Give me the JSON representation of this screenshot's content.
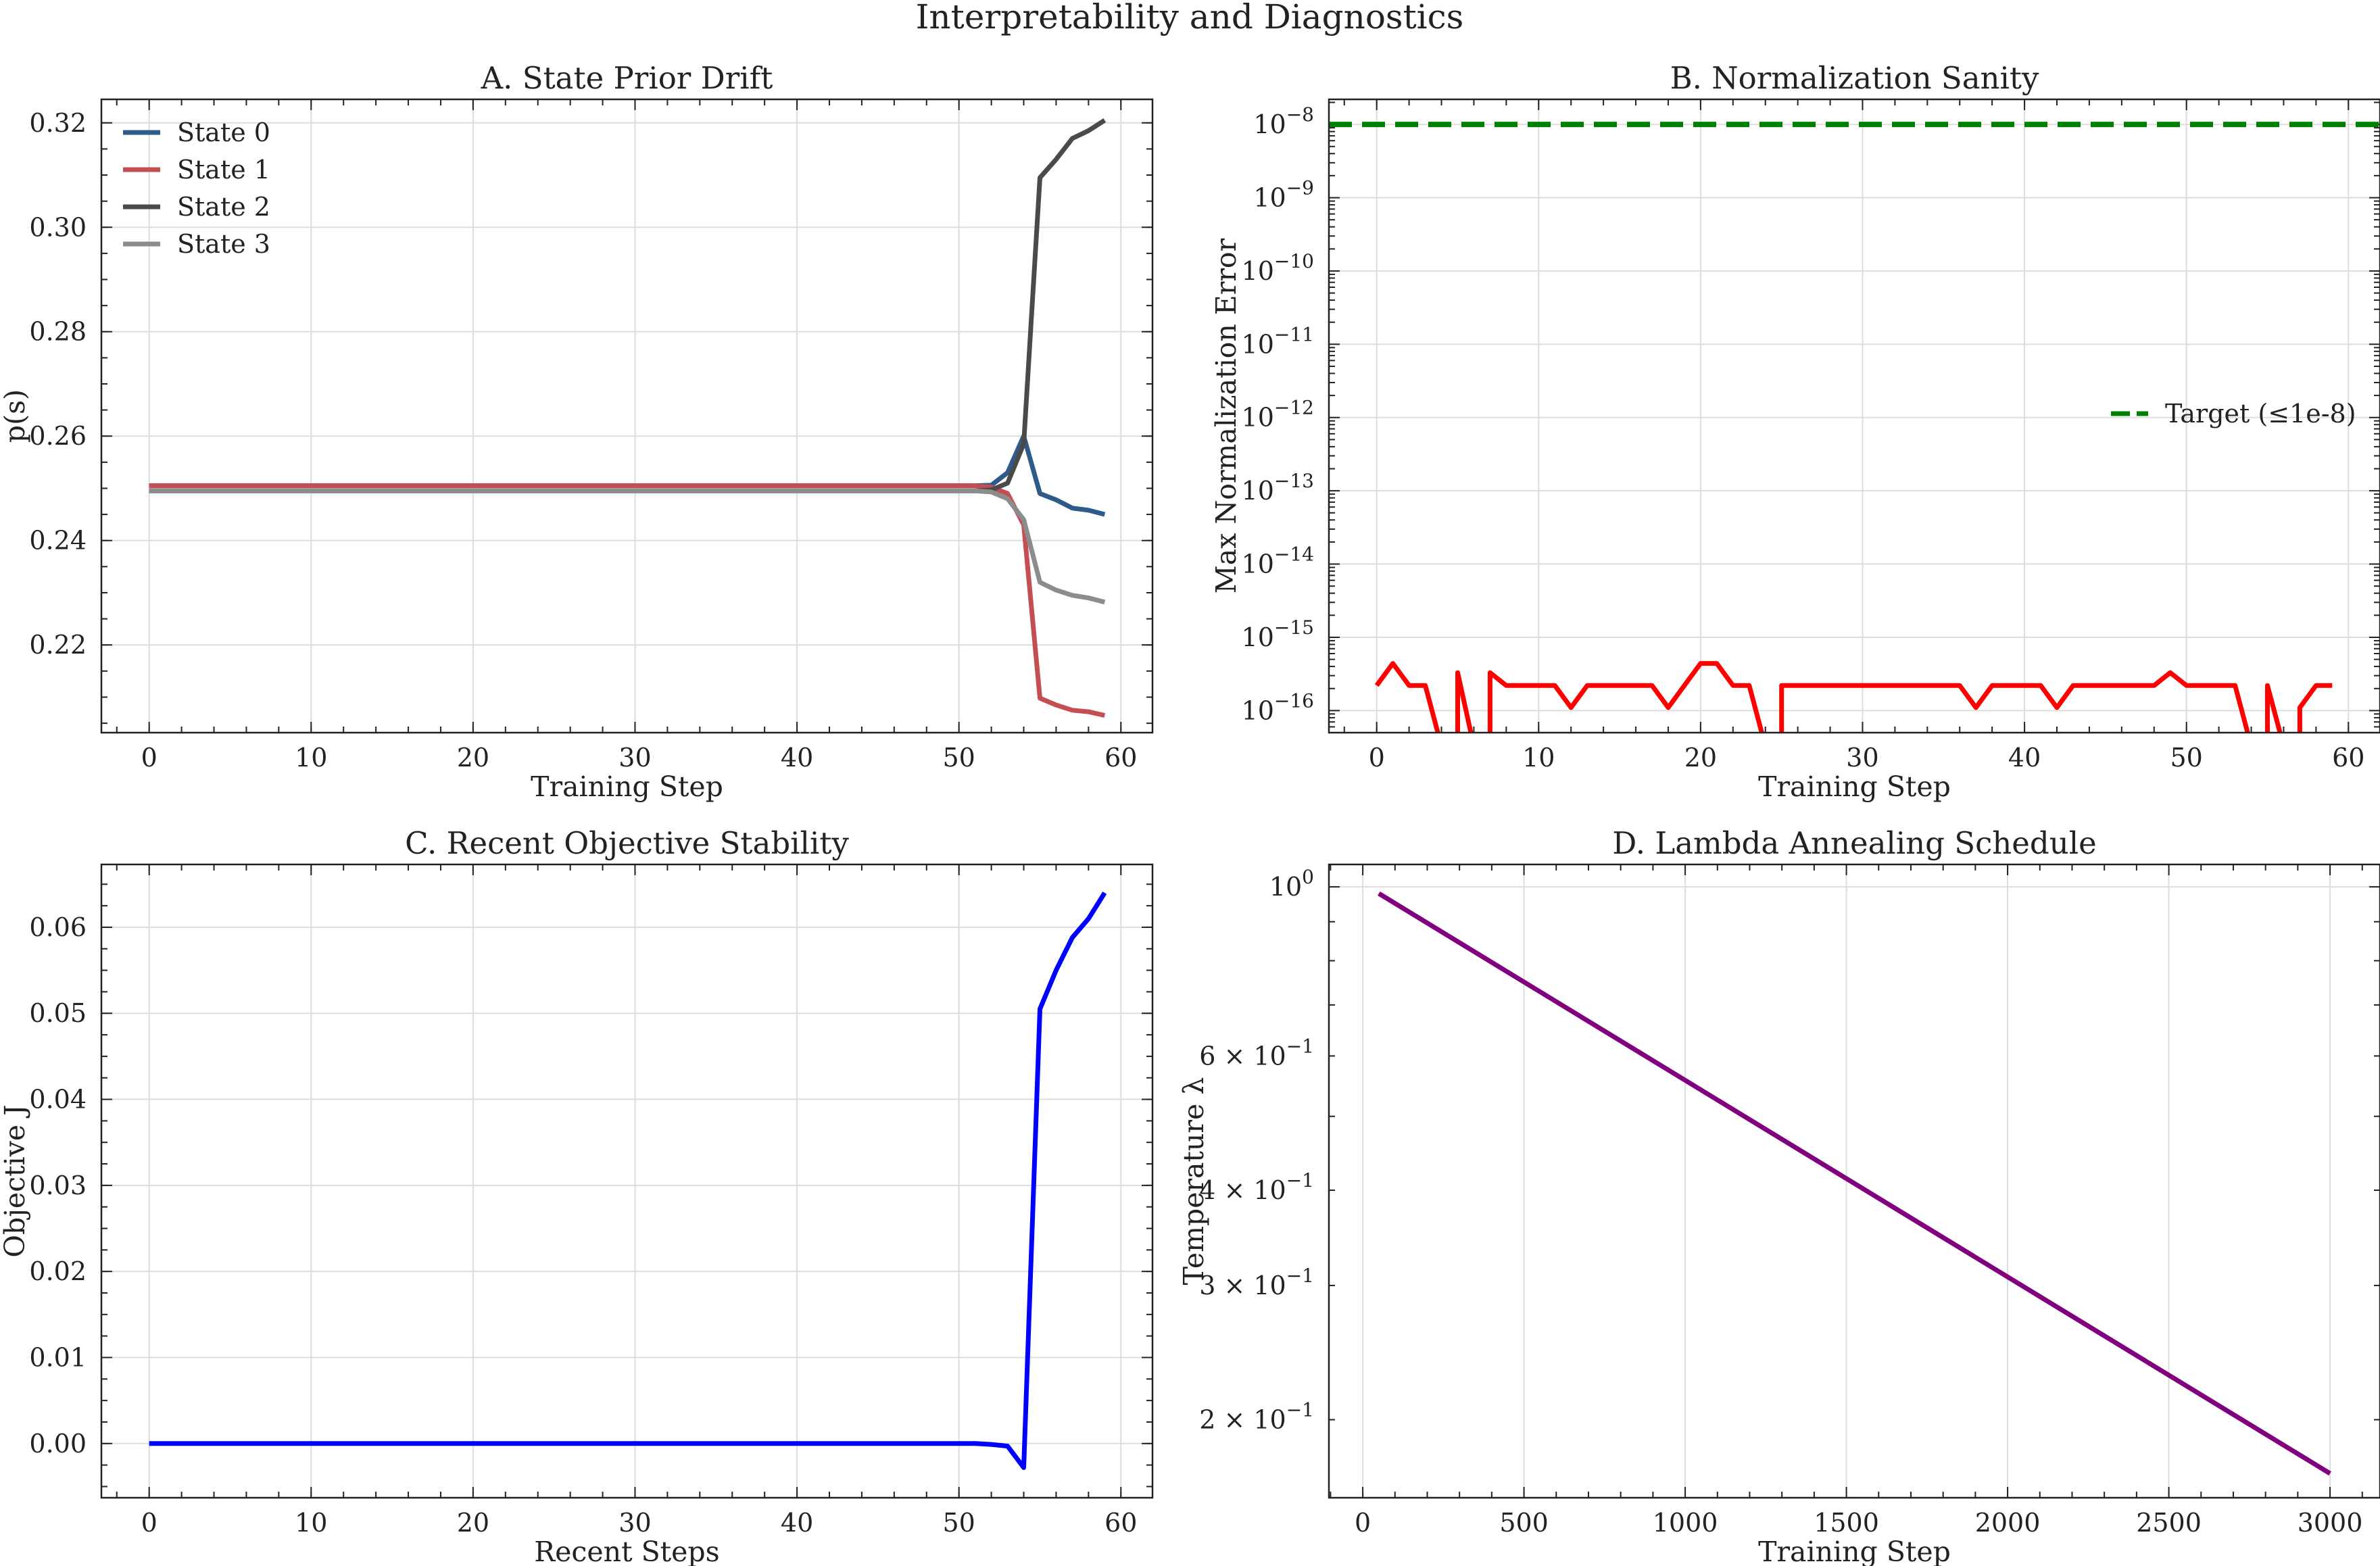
{
  "figure": {
    "title": "Interpretability and Diagnostics"
  },
  "chart_data": [
    {
      "id": "A",
      "type": "line",
      "title": "A. State Prior Drift",
      "xlabel": "Training Step",
      "ylabel": "p(s)",
      "xlim": [
        -2.95,
        61.95
      ],
      "ylim": [
        0.2032,
        0.3245
      ],
      "xticks": [
        0,
        10,
        20,
        30,
        40,
        50,
        60
      ],
      "yticks": [
        0.22,
        0.24,
        0.26,
        0.28,
        0.3,
        0.32
      ],
      "ytick_labels": [
        "0.22",
        "0.24",
        "0.26",
        "0.28",
        "0.30",
        "0.32"
      ],
      "grid": true,
      "legend": "top-left",
      "series": [
        {
          "name": "State 0",
          "color": "#2f5b8a",
          "x": [
            0,
            51,
            52,
            53,
            54,
            55,
            56,
            57,
            58,
            59
          ],
          "y": [
            0.2505,
            0.2505,
            0.2506,
            0.253,
            0.26,
            0.249,
            0.2478,
            0.2462,
            0.2458,
            0.245
          ]
        },
        {
          "name": "State 1",
          "color": "#c44e52",
          "x": [
            0,
            51,
            52,
            53,
            54,
            55,
            56,
            57,
            58,
            59
          ],
          "y": [
            0.2505,
            0.2505,
            0.2502,
            0.249,
            0.243,
            0.2098,
            0.2085,
            0.2075,
            0.2072,
            0.2065
          ]
        },
        {
          "name": "State 2",
          "color": "#4a4a4a",
          "x": [
            0,
            51,
            52,
            53,
            54,
            55,
            56,
            57,
            58,
            59
          ],
          "y": [
            0.2495,
            0.2495,
            0.2497,
            0.251,
            0.2585,
            0.3095,
            0.313,
            0.317,
            0.3185,
            0.3205
          ]
        },
        {
          "name": "State 3",
          "color": "#8c8c8c",
          "x": [
            0,
            51,
            52,
            53,
            54,
            55,
            56,
            57,
            58,
            59
          ],
          "y": [
            0.2495,
            0.2495,
            0.2493,
            0.248,
            0.244,
            0.232,
            0.2305,
            0.2295,
            0.229,
            0.2282
          ]
        }
      ]
    },
    {
      "id": "B",
      "type": "line",
      "title": "B. Normalization Sanity",
      "xlabel": "Training Step",
      "ylabel": "Max Normalization Error",
      "yscale": "log",
      "xlim": [
        -2.95,
        61.95
      ],
      "ylim": [
        5e-17,
        2.2e-08
      ],
      "xticks": [
        0,
        10,
        20,
        30,
        40,
        50,
        60
      ],
      "ytick_exponents": [
        -16,
        -15,
        -14,
        -13,
        -12,
        -11,
        -10,
        -9,
        -8
      ],
      "grid": true,
      "legend": "center-right",
      "series": [
        {
          "name": "",
          "color": "#ff0000",
          "x": [
            0,
            1,
            2,
            3,
            4,
            5,
            6,
            7,
            8,
            9,
            10,
            11,
            12,
            13,
            14,
            15,
            16,
            17,
            18,
            19,
            20,
            21,
            22,
            23,
            24,
            25,
            26,
            27,
            28,
            29,
            30,
            31,
            32,
            33,
            34,
            35,
            36,
            37,
            38,
            39,
            40,
            41,
            42,
            43,
            44,
            45,
            46,
            47,
            48,
            49,
            50,
            51,
            52,
            53,
            54,
            55,
            56,
            57,
            58,
            59
          ],
          "y": [
            2.2e-16,
            4.4e-16,
            2.2e-16,
            2.2e-16,
            0,
            3.3e-16,
            0,
            3.3e-16,
            2.2e-16,
            2.2e-16,
            2.2e-16,
            2.2e-16,
            1.1e-16,
            2.2e-16,
            2.2e-16,
            2.2e-16,
            2.2e-16,
            2.2e-16,
            1.1e-16,
            2.2e-16,
            4.4e-16,
            4.4e-16,
            2.2e-16,
            2.2e-16,
            0,
            2.2e-16,
            2.2e-16,
            2.2e-16,
            2.2e-16,
            2.2e-16,
            2.2e-16,
            2.2e-16,
            2.2e-16,
            2.2e-16,
            2.2e-16,
            2.2e-16,
            2.2e-16,
            1.1e-16,
            2.2e-16,
            2.2e-16,
            2.2e-16,
            2.2e-16,
            1.1e-16,
            2.2e-16,
            2.2e-16,
            2.2e-16,
            2.2e-16,
            2.2e-16,
            2.2e-16,
            3.3e-16,
            2.2e-16,
            2.2e-16,
            2.2e-16,
            2.2e-16,
            0,
            2.2e-16,
            0,
            1.1e-16,
            2.2e-16,
            2.2e-16
          ]
        },
        {
          "name": "Target (≤1e-8)",
          "color": "#008000",
          "dashed": true,
          "y_const": 1e-08
        }
      ]
    },
    {
      "id": "C",
      "type": "line",
      "title": "C. Recent Objective Stability",
      "xlabel": "Recent Steps",
      "ylabel": "Objective J",
      "xlim": [
        -2.95,
        61.95
      ],
      "ylim": [
        -0.0063,
        0.0673
      ],
      "xticks": [
        0,
        10,
        20,
        30,
        40,
        50,
        60
      ],
      "yticks": [
        0.0,
        0.01,
        0.02,
        0.03,
        0.04,
        0.05,
        0.06
      ],
      "ytick_labels": [
        "0.00",
        "0.01",
        "0.02",
        "0.03",
        "0.04",
        "0.05",
        "0.06"
      ],
      "grid": true,
      "series": [
        {
          "name": "",
          "color": "#0000ff",
          "x": [
            0,
            51,
            52,
            53,
            54,
            55,
            56,
            57,
            58,
            59
          ],
          "y": [
            0.0,
            0.0,
            -0.0001,
            -0.0003,
            -0.0028,
            0.0505,
            0.055,
            0.0588,
            0.061,
            0.064
          ]
        }
      ]
    },
    {
      "id": "D",
      "type": "line",
      "title": "D. Lambda Annealing Schedule",
      "xlabel": "Training Step",
      "ylabel": "Temperature λ",
      "yscale": "log",
      "xlim": [
        -105,
        3155
      ],
      "ylim": [
        0.158,
        1.07
      ],
      "xticks": [
        0,
        500,
        1000,
        1500,
        2000,
        2500,
        3000
      ],
      "yticks_major": [
        1.0
      ],
      "ytick_labels_major": [
        "0"
      ],
      "yticks_minor_labeled": [
        0.6,
        0.4,
        0.3,
        0.2
      ],
      "ytick_labels_minor": [
        "6",
        "4",
        "3",
        "2"
      ],
      "grid": true,
      "series": [
        {
          "name": "",
          "color": "#800080",
          "x": [
            50,
            3000
          ],
          "y": [
            0.98,
            0.17
          ]
        }
      ]
    }
  ]
}
